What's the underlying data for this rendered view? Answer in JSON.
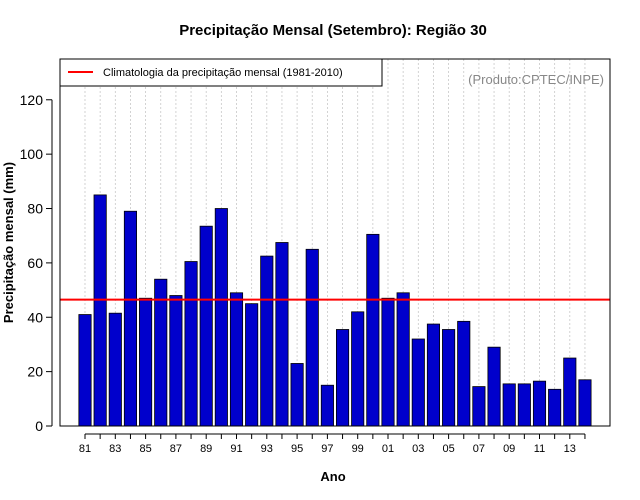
{
  "chart_data": {
    "type": "bar",
    "title": "Precipitação Mensal (Setembro): Região 30",
    "xlabel": "Ano",
    "ylabel": "Precipitação mensal (mm)",
    "credit": "(Produto:CPTEC/INPE)",
    "ylim": [
      0,
      135
    ],
    "yticks": [
      0,
      20,
      40,
      60,
      80,
      100,
      120
    ],
    "grid": "vertical dotted",
    "categories": [
      "81",
      "82",
      "83",
      "84",
      "85",
      "86",
      "87",
      "88",
      "89",
      "90",
      "91",
      "92",
      "93",
      "94",
      "95",
      "96",
      "97",
      "98",
      "99",
      "00",
      "01",
      "02",
      "03",
      "04",
      "05",
      "06",
      "07",
      "08",
      "09",
      "10",
      "11",
      "12",
      "13",
      "14"
    ],
    "xtick_labels": [
      "81",
      "83",
      "85",
      "87",
      "89",
      "91",
      "93",
      "95",
      "97",
      "99",
      "01",
      "03",
      "05",
      "07",
      "09",
      "11",
      "13"
    ],
    "values": [
      41,
      85,
      41.5,
      79,
      47,
      54,
      48,
      60.5,
      73.5,
      80,
      49,
      45,
      62.5,
      67.5,
      23,
      65,
      15,
      35.5,
      42,
      70.5,
      47,
      49,
      32,
      37.5,
      35.5,
      38.5,
      14.5,
      29,
      15.5,
      15.5,
      16.5,
      13.5,
      25,
      17
    ],
    "bar_color": "#0000cc",
    "climatology": {
      "label": "Climatologia da precipitação mensal (1981-2010)",
      "value": 46.5,
      "color": "#ff0000"
    },
    "legend_position": "top-left"
  }
}
